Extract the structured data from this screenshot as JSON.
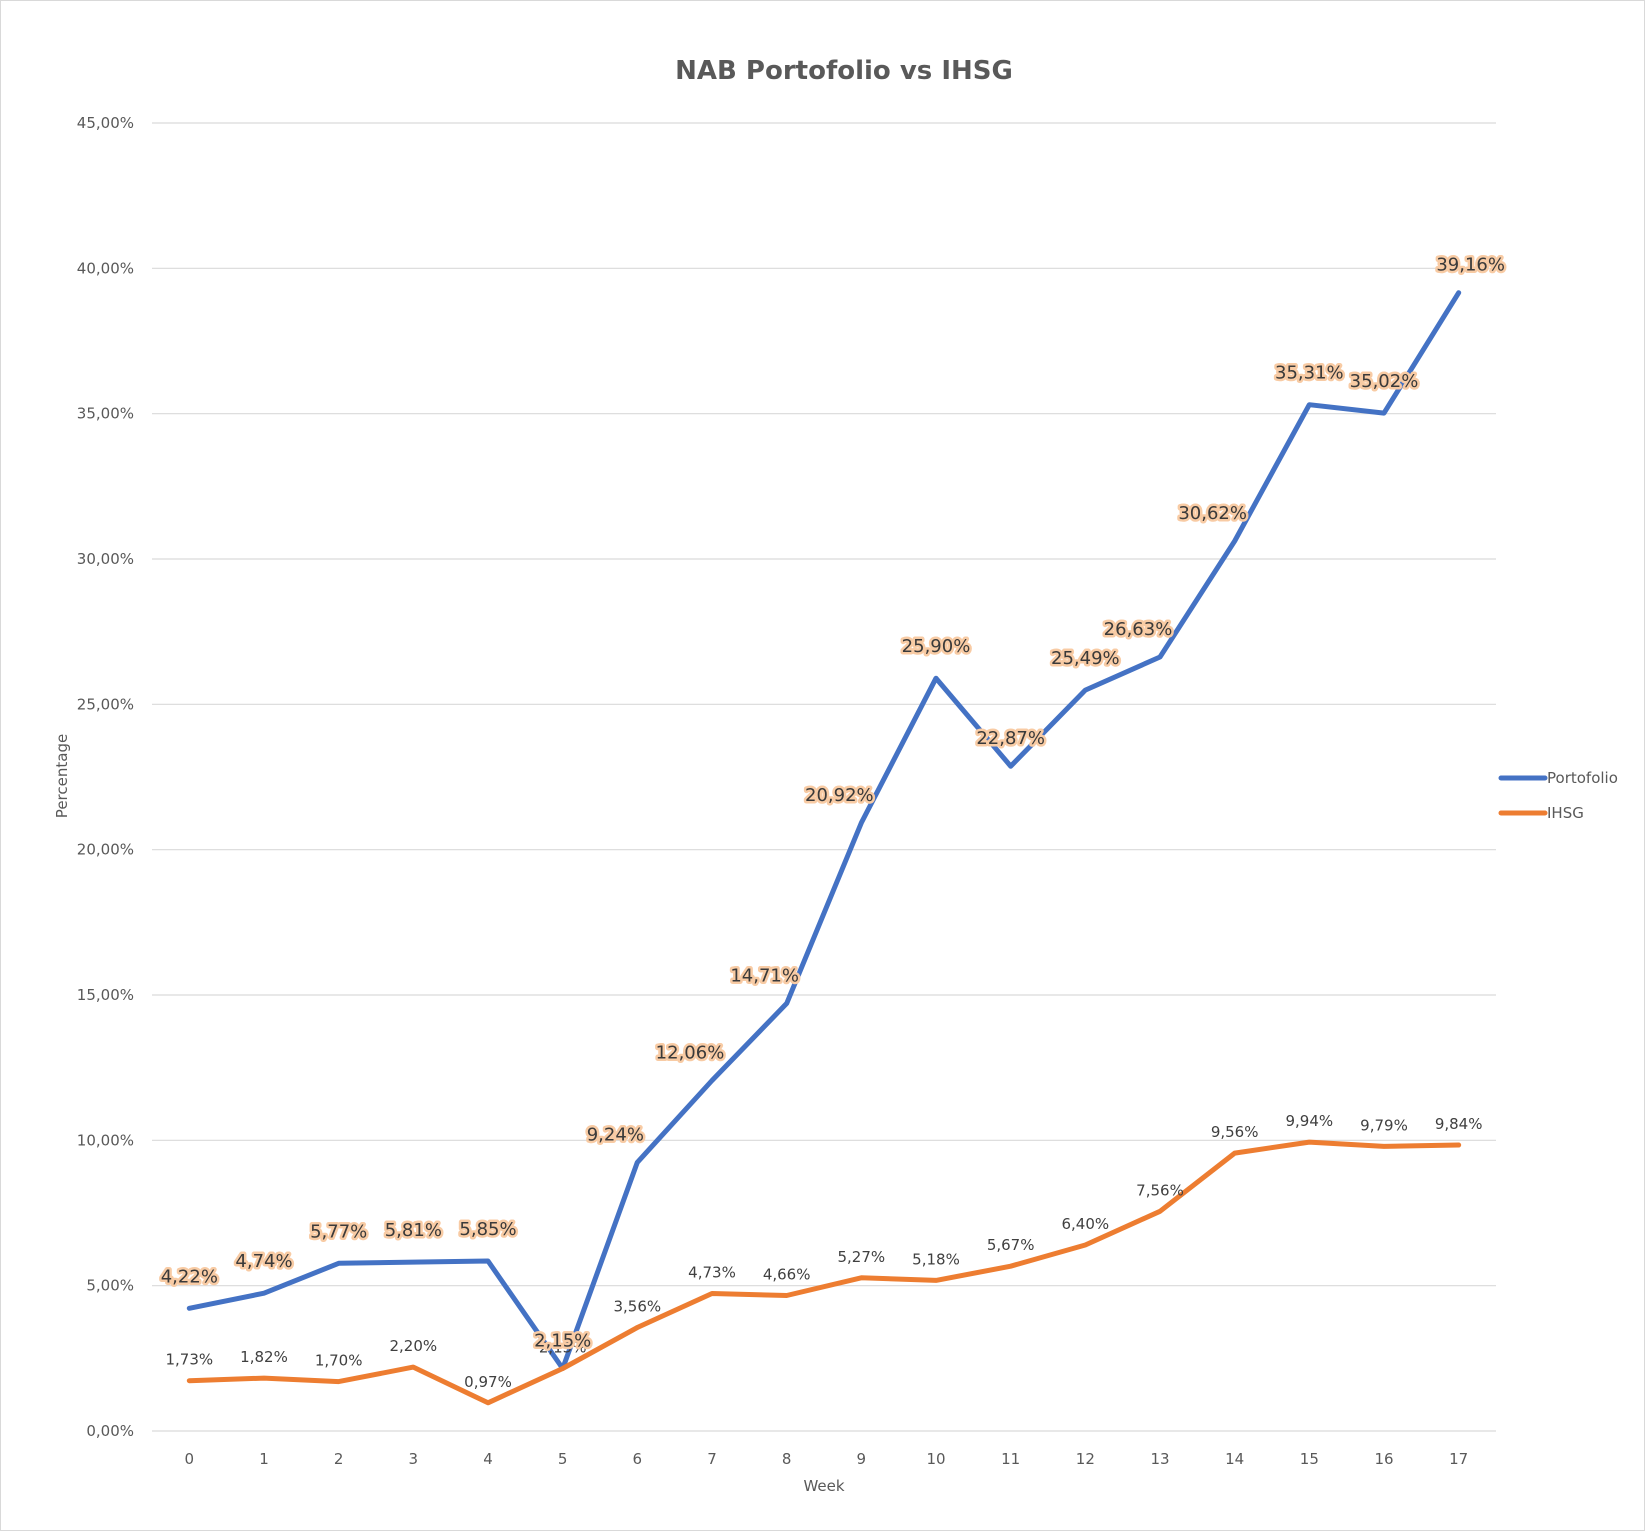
{
  "chart_data": {
    "type": "line",
    "title": "NAB Portofolio vs IHSG",
    "xlabel": "Week",
    "ylabel": "Percentage",
    "categories": [
      "0",
      "1",
      "2",
      "3",
      "4",
      "5",
      "6",
      "7",
      "8",
      "9",
      "10",
      "11",
      "12",
      "13",
      "14",
      "15",
      "16",
      "17"
    ],
    "yticks": [
      "0,00%",
      "5,00%",
      "10,00%",
      "15,00%",
      "20,00%",
      "25,00%",
      "30,00%",
      "35,00%",
      "40,00%",
      "45,00%"
    ],
    "ylim": [
      0,
      45
    ],
    "grid": "horizontal",
    "legend_position": "right",
    "series": [
      {
        "name": "Portofolio",
        "color": "#4472c4",
        "values": [
          4.22,
          4.74,
          5.77,
          5.81,
          5.85,
          2.15,
          9.24,
          12.06,
          14.71,
          20.92,
          25.9,
          22.87,
          25.49,
          26.63,
          30.62,
          35.31,
          35.02,
          39.16
        ],
        "labels": [
          "4,22%",
          "4,74%",
          "5,77%",
          "5,81%",
          "5,85%",
          "2,15%",
          "9,24%",
          "12,06%",
          "14,71%",
          "20,92%",
          "25,90%",
          "22,87%",
          "25,49%",
          "26,63%",
          "30,62%",
          "35,31%",
          "35,02%",
          "39,16%"
        ]
      },
      {
        "name": "IHSG",
        "color": "#ed7d31",
        "values": [
          1.73,
          1.82,
          1.7,
          2.2,
          0.97,
          2.15,
          3.56,
          4.73,
          4.66,
          5.27,
          5.18,
          5.67,
          6.4,
          7.56,
          9.56,
          9.94,
          9.79,
          9.84
        ],
        "labels": [
          "1,73%",
          "1,82%",
          "1,70%",
          "2,20%",
          "0,97%",
          "2,15%",
          "3,56%",
          "4,73%",
          "4,66%",
          "5,27%",
          "5,18%",
          "5,67%",
          "6,40%",
          "7,56%",
          "9,56%",
          "9,94%",
          "9,79%",
          "9,84%"
        ]
      }
    ]
  }
}
